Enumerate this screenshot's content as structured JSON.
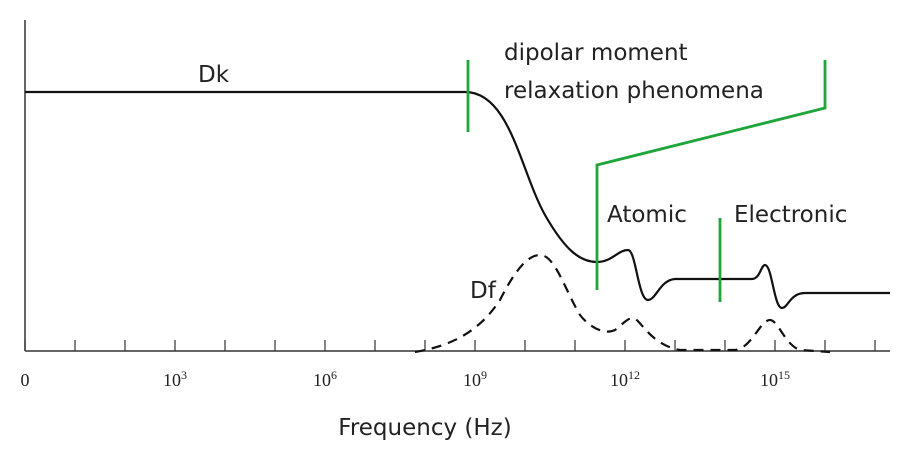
{
  "labels": {
    "dk": "Dk",
    "df": "Df",
    "dipolar_line1": "dipolar moment",
    "dipolar_line2": "relaxation phenomena",
    "atomic": "Atomic",
    "electronic": "Electronic"
  },
  "x_axis": {
    "title": "Frequency (Hz)",
    "ticks": [
      {
        "base": "0"
      },
      {
        "base": "10",
        "exp": "3"
      },
      {
        "base": "10",
        "exp": "6"
      },
      {
        "base": "10",
        "exp": "9"
      },
      {
        "base": "10",
        "exp": "12"
      },
      {
        "base": "10",
        "exp": "15"
      }
    ]
  }
}
